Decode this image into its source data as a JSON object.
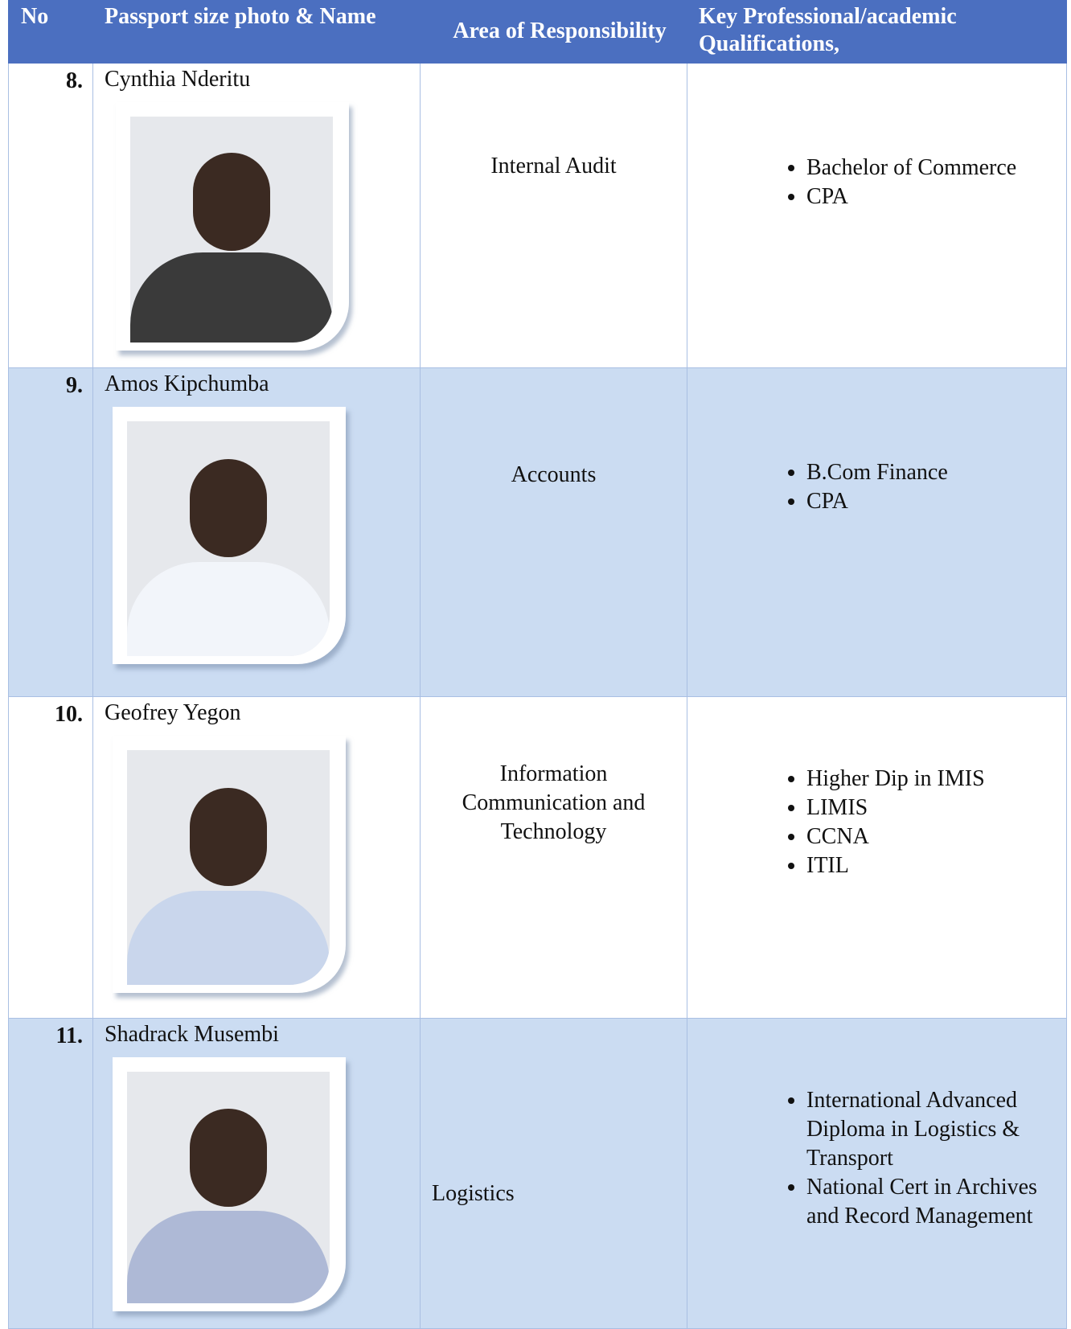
{
  "table": {
    "header": [
      "No",
      "Passport  size photo & Name",
      "Area of Responsibility",
      "Key Professional/academic Qualifications,"
    ],
    "rows": [
      {
        "no": "8.",
        "name": "Cynthia Nderitu",
        "area": "Internal Audit",
        "qualifications": [
          "Bachelor of Commerce",
          "CPA"
        ]
      },
      {
        "no": "9.",
        "name": "Amos Kipchumba",
        "area": "Accounts",
        "qualifications": [
          "B.Com Finance",
          "CPA"
        ]
      },
      {
        "no": "10.",
        "name": "Geofrey Yegon",
        "area": "Information Communication and Technology",
        "qualifications": [
          "Higher Dip in IMIS",
          "LIMIS",
          "CCNA",
          "ITIL"
        ]
      },
      {
        "no": "11.",
        "name": "Shadrack Musembi",
        "area": "Logistics",
        "qualifications": [
          "International Advanced Diploma in Logistics & Transport",
          "National Cert in Archives and Record Management"
        ]
      }
    ]
  }
}
